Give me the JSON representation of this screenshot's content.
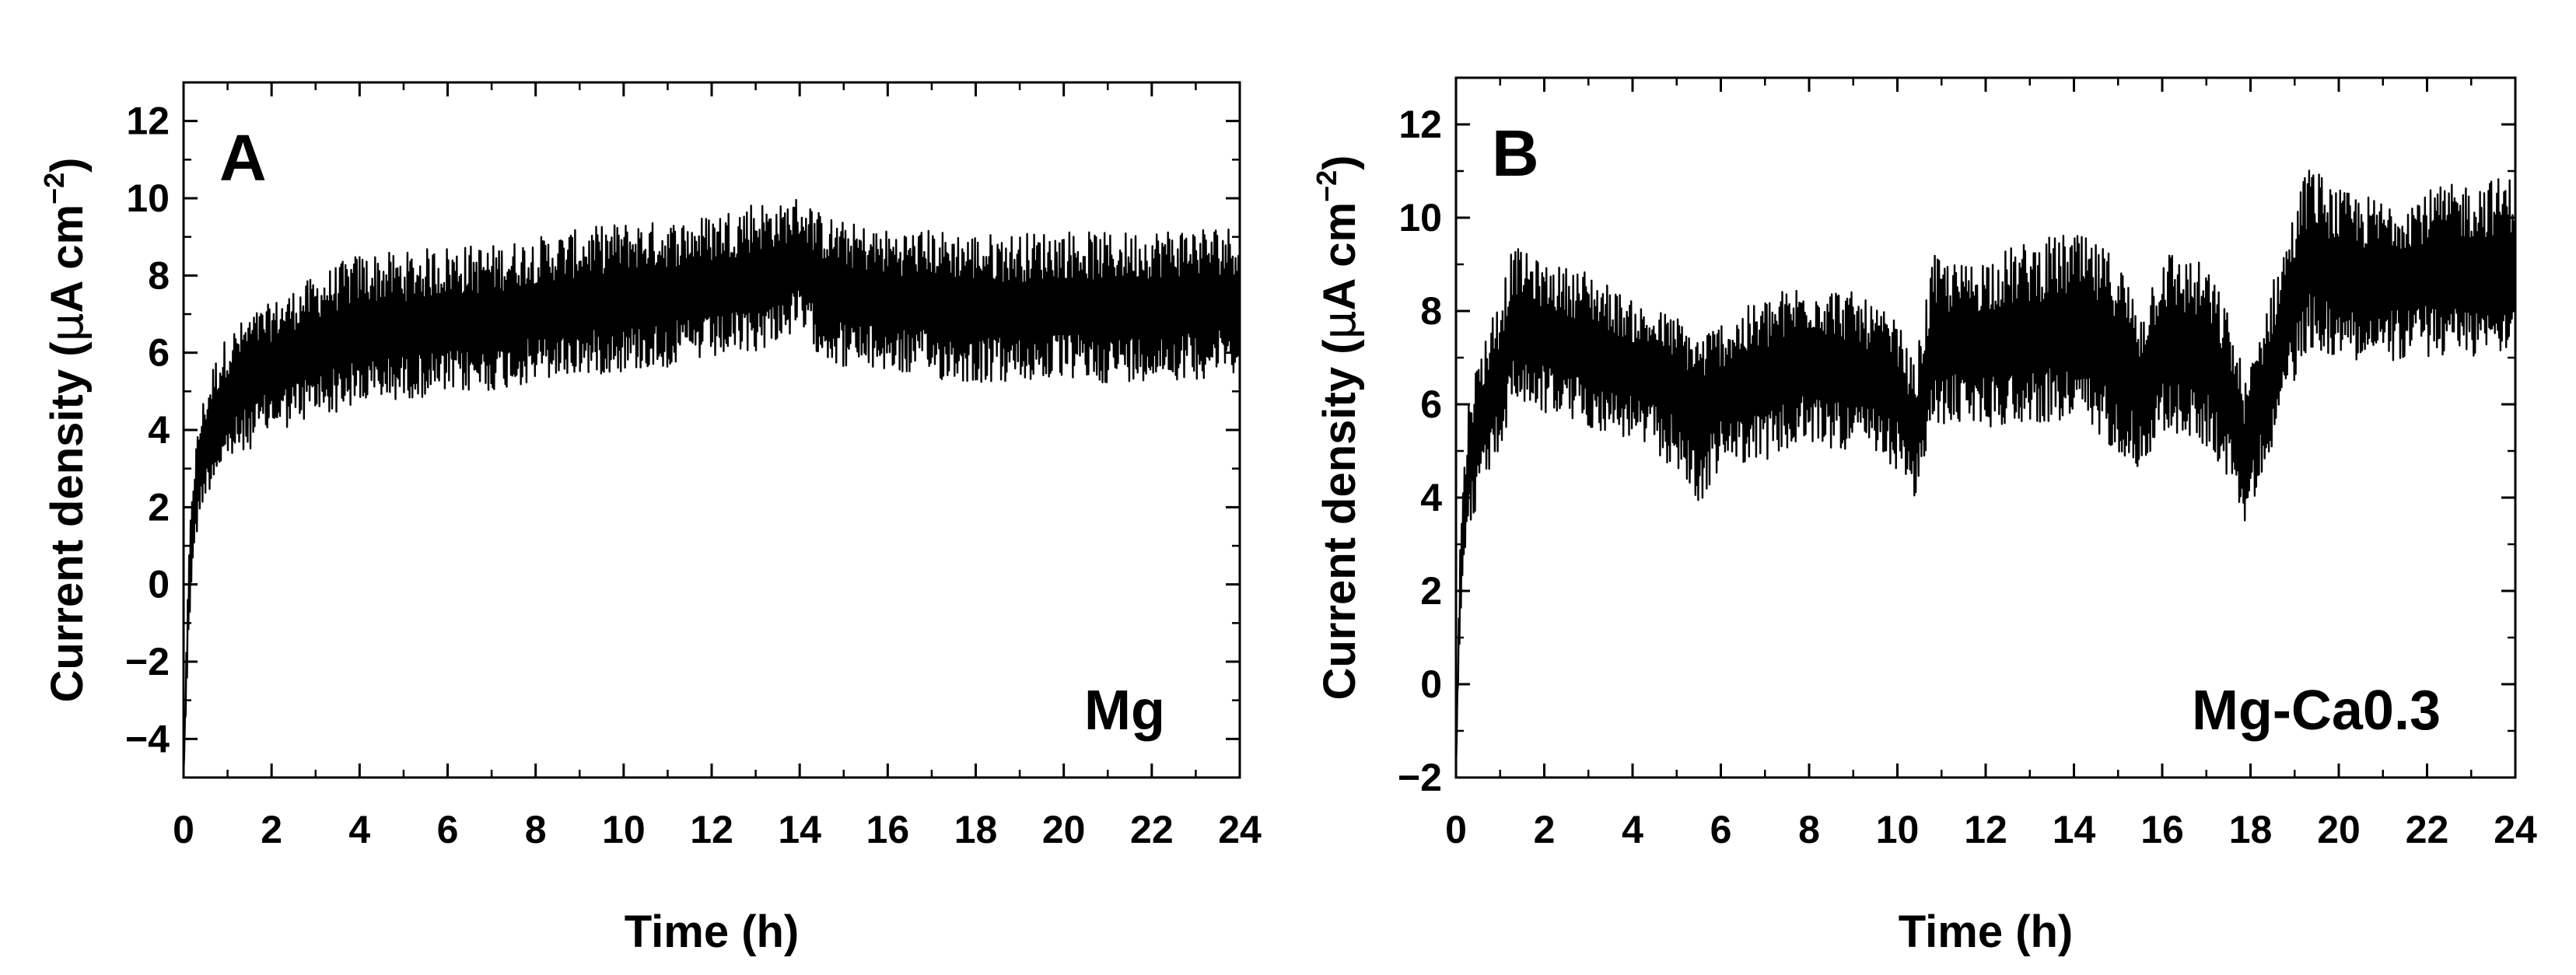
{
  "chart_data": [
    {
      "type": "line",
      "panel_label": "A",
      "annotation": "Mg",
      "xlabel": "Time (h)",
      "ylabel_main": "Current density (",
      "ylabel_mu": "μ",
      "ylabel_unit": "A cm",
      "ylabel_exp": "−2",
      "ylabel_close": ")",
      "xlim": [
        0,
        24
      ],
      "ylim": [
        -5,
        13
      ],
      "xticks": [
        0,
        2,
        4,
        6,
        8,
        10,
        12,
        14,
        16,
        18,
        20,
        22,
        24
      ],
      "yticks": [
        -4,
        -2,
        0,
        2,
        4,
        6,
        8,
        10,
        12
      ],
      "grid": false,
      "series": [
        {
          "color": "#000000",
          "x": [
            0,
            0.1,
            0.2,
            0.4,
            0.7,
            1,
            1.5,
            2,
            3,
            4,
            5,
            6,
            7,
            8,
            9,
            10,
            11,
            12,
            13,
            13.5,
            14,
            14.5,
            15,
            16,
            17,
            18,
            19,
            20,
            21,
            22,
            23,
            24
          ],
          "y": [
            -4.9,
            -1,
            1.5,
            3.2,
            4.2,
            4.8,
            5.3,
            5.7,
            6.2,
            6.5,
            6.6,
            6.7,
            6.8,
            7.1,
            7.2,
            7.4,
            7.5,
            7.6,
            7.8,
            8.1,
            8.3,
            7.7,
            7.5,
            7.3,
            7.3,
            7.1,
            7.1,
            7.2,
            7.1,
            7.2,
            7.2,
            7.3
          ],
          "upper": [
            -4.9,
            0,
            3,
            4.6,
            5.8,
            6.5,
            7,
            7.3,
            8,
            8.6,
            8.6,
            8.8,
            8.8,
            9,
            9.2,
            9.4,
            9.4,
            9.6,
            10,
            9.8,
            10.1,
            9.6,
            9.4,
            9.2,
            9.2,
            9.1,
            9.1,
            9.2,
            9.1,
            9.2,
            9.3,
            9.3
          ],
          "lower": [
            -4.9,
            -2,
            0.5,
            2,
            2.7,
            3.1,
            3.5,
            3.9,
            4.3,
            4.6,
            4.8,
            4.9,
            5,
            5.2,
            5.4,
            5.5,
            5.6,
            5.8,
            6,
            6.3,
            6.5,
            5.9,
            5.6,
            5.5,
            5.3,
            5.2,
            5.2,
            5.3,
            5.2,
            5.3,
            5.3,
            5.5
          ]
        }
      ]
    },
    {
      "type": "line",
      "panel_label": "B",
      "annotation": "Mg-Ca0.3",
      "xlabel": "Time (h)",
      "ylabel_main": "Current density (",
      "ylabel_mu": "μ",
      "ylabel_unit": "A cm",
      "ylabel_exp": "−2",
      "ylabel_close": ")",
      "xlim": [
        0,
        24
      ],
      "ylim": [
        -2,
        13
      ],
      "xticks": [
        0,
        2,
        4,
        6,
        8,
        10,
        12,
        14,
        16,
        18,
        20,
        22,
        24
      ],
      "yticks": [
        -2,
        0,
        2,
        4,
        6,
        8,
        10,
        12
      ],
      "grid": false,
      "series": [
        {
          "color": "#000000",
          "x": [
            0,
            0.1,
            0.3,
            0.6,
            1,
            1.3,
            2,
            3,
            4,
            5,
            5.5,
            6,
            7,
            8,
            9,
            10,
            10.4,
            10.8,
            11.5,
            12,
            13,
            14,
            15,
            15.5,
            16,
            17,
            17.5,
            17.9,
            18.3,
            19,
            19.3,
            20,
            21,
            22,
            23,
            24
          ],
          "y": [
            -1.8,
            2.5,
            4.8,
            5.7,
            6.5,
            7.8,
            7.5,
            7.1,
            6.8,
            6.4,
            5.8,
            6.2,
            6.4,
            6.9,
            6.7,
            6.3,
            5.2,
            7.2,
            7.3,
            7.3,
            7.4,
            7.5,
            7.1,
            6.2,
            7.2,
            7,
            6.1,
            4.8,
            6.2,
            8.3,
            9.1,
            8.7,
            8.6,
            8.8,
            8.8,
            9
          ],
          "upper": [
            -1.8,
            3.5,
            6.3,
            7.3,
            8.5,
            9.4,
            9,
            8.9,
            8.2,
            7.9,
            7.5,
            7.8,
            8.3,
            8.7,
            8.4,
            7.8,
            6.8,
            9.2,
            9,
            9.2,
            9.5,
            9.7,
            9.2,
            8,
            9.4,
            9,
            8,
            6.5,
            8,
            10.2,
            11.2,
            10.6,
            10.4,
            10.6,
            10.8,
            10.9
          ],
          "lower": [
            -1.8,
            1.5,
            3.3,
            4.2,
            5,
            6,
            5.8,
            5.5,
            5.2,
            4.6,
            3.7,
            4.7,
            4.8,
            5.1,
            5,
            4.6,
            3.9,
            5.5,
            5.6,
            5.5,
            5.6,
            5.6,
            5,
            4.6,
            5.4,
            5.1,
            4.4,
            3.4,
            4.6,
            6.5,
            7.2,
            7,
            6.9,
            7,
            7,
            7.2
          ]
        }
      ]
    }
  ]
}
